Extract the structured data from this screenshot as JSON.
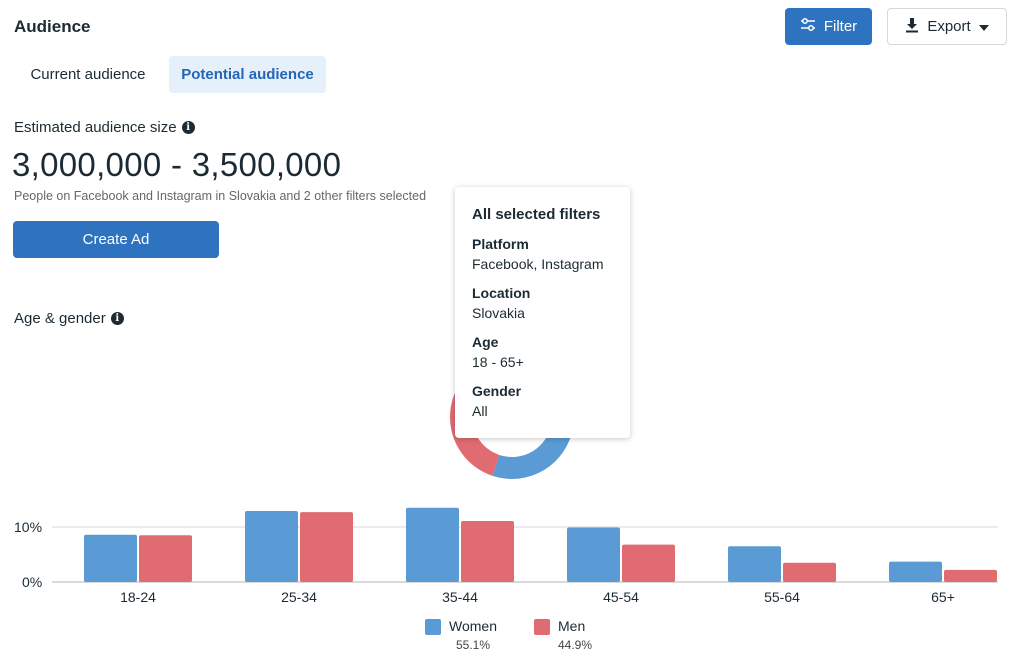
{
  "header": {
    "title": "Audience",
    "filter_label": "Filter",
    "export_label": "Export"
  },
  "tabs": [
    {
      "label": "Current audience",
      "active": false
    },
    {
      "label": "Potential audience",
      "active": true
    }
  ],
  "estimate": {
    "label": "Estimated audience size",
    "size": "3,000,000 - 3,500,000",
    "description": "People on Facebook and Instagram in Slovakia and 2 other filters selected"
  },
  "create_ad_label": "Create Ad",
  "age_gender_label": "Age & gender",
  "tooltip": {
    "title": "All selected filters",
    "items": [
      {
        "label": "Platform",
        "value": "Facebook, Instagram"
      },
      {
        "label": "Location",
        "value": "Slovakia"
      },
      {
        "label": "Age",
        "value": "18 - 65+"
      },
      {
        "label": "Gender",
        "value": "All"
      }
    ]
  },
  "colors": {
    "women": "#5b9bd5",
    "men": "#e06b70",
    "accent": "#2e73c0"
  },
  "icons": {
    "filter": "sliders-icon",
    "export": "download-icon",
    "info": "info-icon"
  },
  "chart_data": {
    "type": "bar",
    "categories": [
      "18-24",
      "25-34",
      "35-44",
      "45-54",
      "55-64",
      "65+"
    ],
    "series": [
      {
        "name": "Women",
        "values": [
          8.6,
          12.9,
          13.5,
          9.9,
          6.5,
          3.7
        ]
      },
      {
        "name": "Men",
        "values": [
          8.5,
          12.7,
          11.1,
          6.8,
          3.5,
          2.2
        ]
      }
    ],
    "y_ticks": [
      "10%",
      "0%"
    ],
    "grid": true,
    "legend": [
      {
        "name": "Women",
        "share": "55.1%"
      },
      {
        "name": "Men",
        "share": "44.9%"
      }
    ]
  },
  "gender_split": {
    "women": 55.1,
    "men": 44.9
  }
}
